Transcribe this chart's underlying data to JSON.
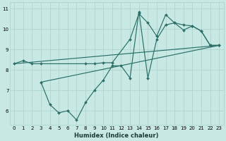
{
  "xlabel": "Humidex (Indice chaleur)",
  "xlim": [
    -0.5,
    23.5
  ],
  "ylim": [
    5.3,
    11.3
  ],
  "bg_color": "#c8e8e4",
  "grid_color": "#b0d4d0",
  "line_color": "#2a7068",
  "series1_x": [
    0,
    1,
    2,
    3,
    8,
    9,
    10,
    11,
    13,
    14,
    15,
    16,
    17,
    18,
    19,
    20,
    21,
    22,
    23
  ],
  "series1_y": [
    8.3,
    8.45,
    8.3,
    8.3,
    8.3,
    8.3,
    8.35,
    8.35,
    9.5,
    10.75,
    10.3,
    9.65,
    10.7,
    10.3,
    10.2,
    10.15,
    9.9,
    9.2,
    9.2
  ],
  "series2_x": [
    3,
    4,
    5,
    6,
    7,
    8,
    9,
    10,
    11,
    12,
    13,
    14,
    15,
    16,
    17,
    18,
    19,
    20,
    21,
    22,
    23
  ],
  "series2_y": [
    7.4,
    6.3,
    5.9,
    6.0,
    5.55,
    6.4,
    7.0,
    7.5,
    8.2,
    8.2,
    7.6,
    10.85,
    7.6,
    9.5,
    10.2,
    10.3,
    9.95,
    10.15,
    9.9,
    9.2,
    9.2
  ],
  "trend1_x": [
    0,
    23
  ],
  "trend1_y": [
    8.3,
    9.2
  ],
  "trend2_x": [
    3,
    23
  ],
  "trend2_y": [
    7.4,
    9.2
  ],
  "xticks": [
    0,
    1,
    2,
    3,
    4,
    5,
    6,
    7,
    8,
    9,
    10,
    11,
    12,
    13,
    14,
    15,
    16,
    17,
    18,
    19,
    20,
    21,
    22,
    23
  ],
  "yticks": [
    6,
    7,
    8,
    9,
    10,
    11
  ],
  "xlabel_fontsize": 6.0,
  "tick_fontsize": 5.0
}
